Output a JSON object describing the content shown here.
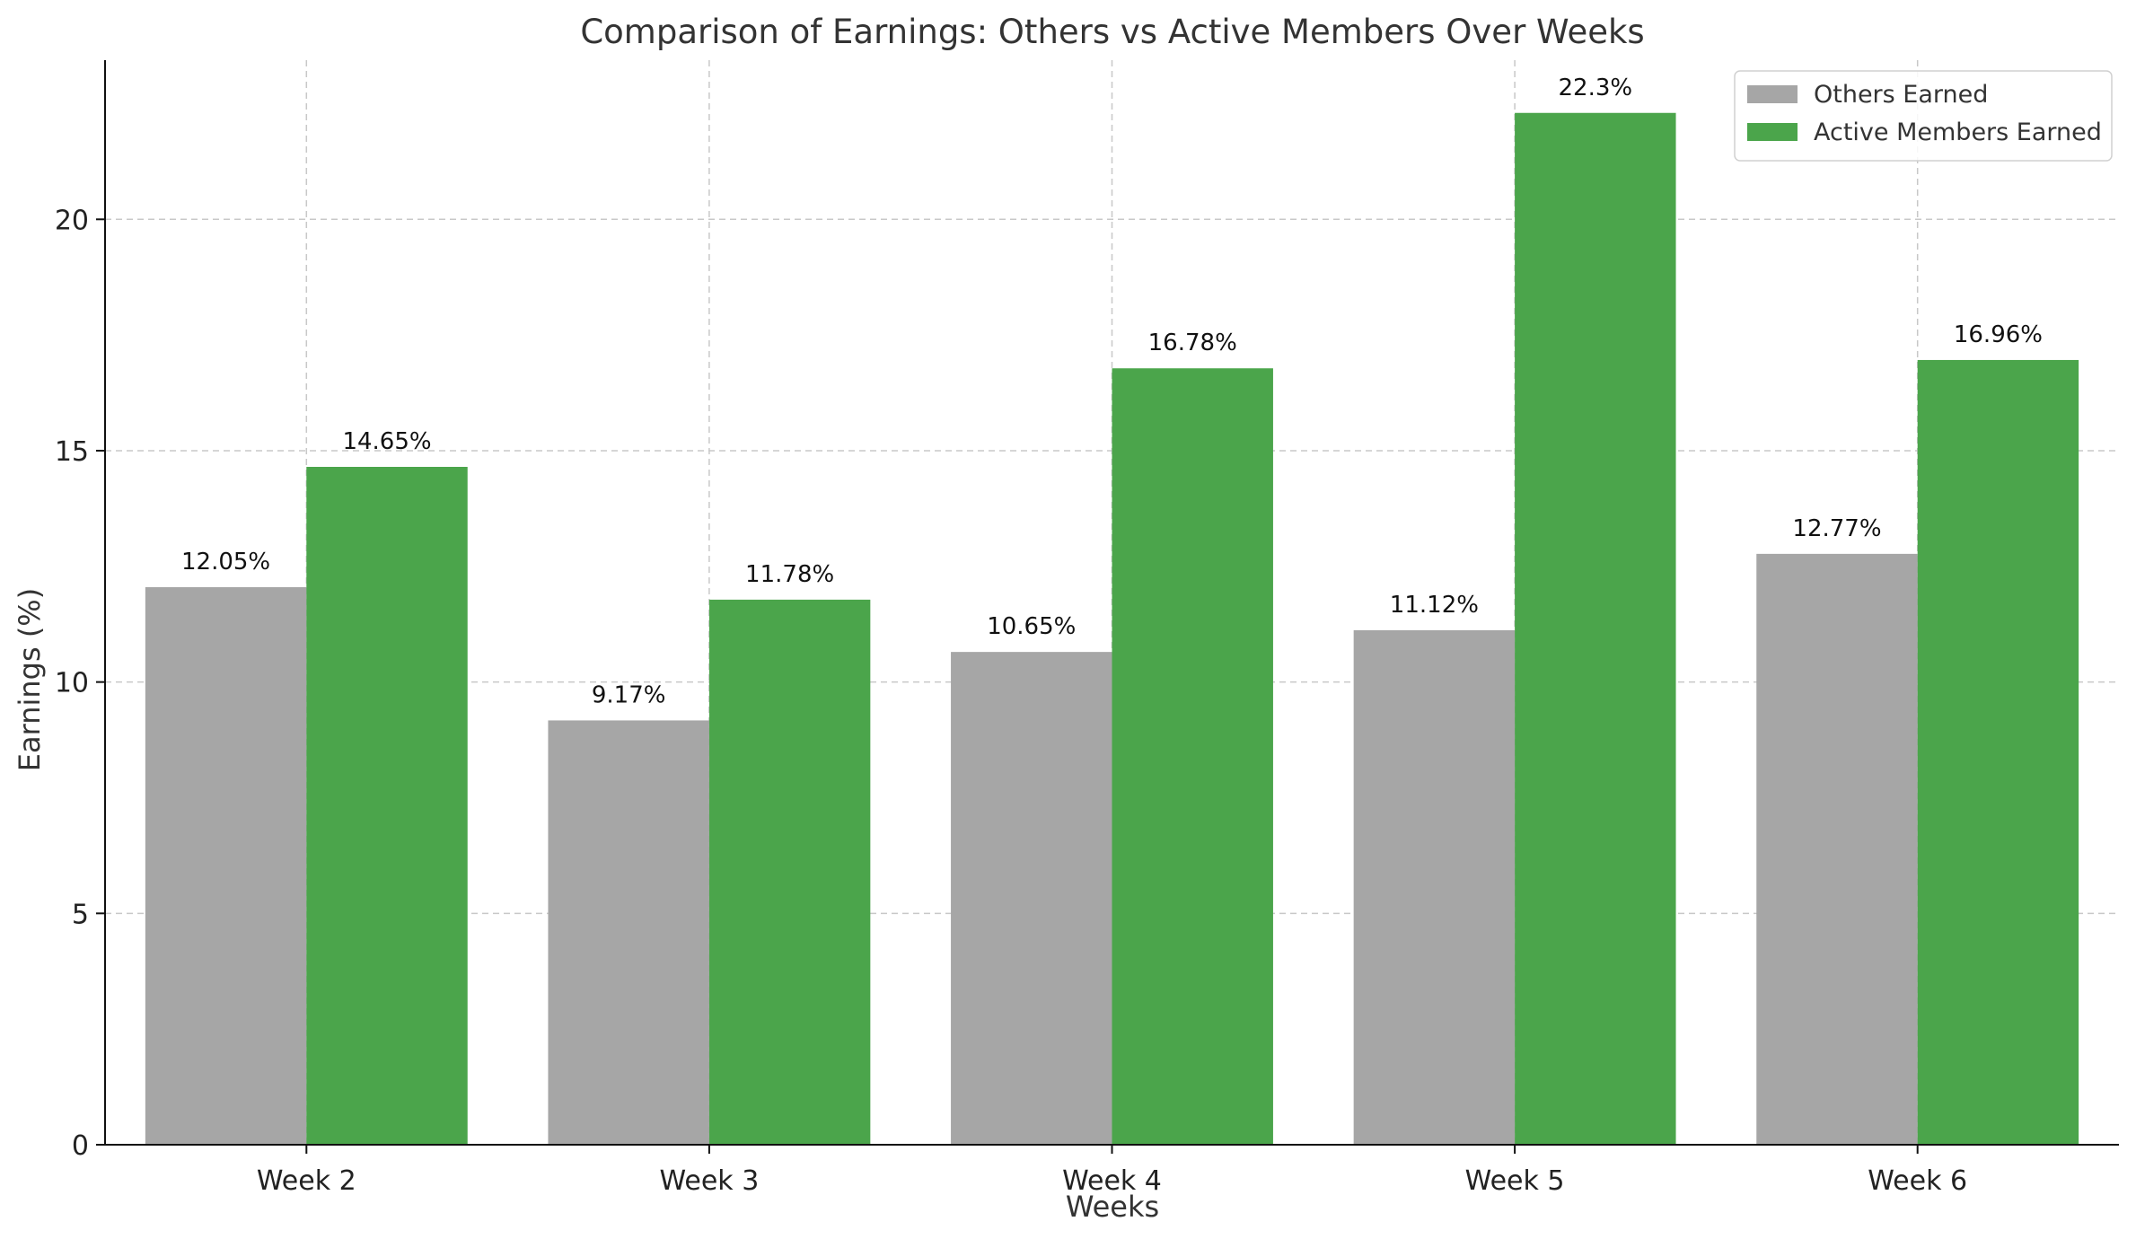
{
  "chart_data": {
    "type": "bar",
    "title": "Comparison of Earnings: Others vs Active Members Over Weeks",
    "xlabel": "Weeks",
    "ylabel": "Earnings (%)",
    "categories": [
      "Week 2",
      "Week 3",
      "Week 4",
      "Week 5",
      "Week 6"
    ],
    "series": [
      {
        "name": "Others Earned",
        "color": "#a6a6a6",
        "values": [
          12.05,
          9.17,
          10.65,
          11.12,
          12.77
        ],
        "labels": [
          "12.05%",
          "9.17%",
          "10.65%",
          "11.12%",
          "12.77%"
        ]
      },
      {
        "name": "Active Members Earned",
        "color": "#4ba54b",
        "values": [
          14.65,
          11.78,
          16.78,
          22.3,
          16.96
        ],
        "labels": [
          "14.65%",
          "11.78%",
          "16.78%",
          "22.3%",
          "16.96%"
        ]
      }
    ],
    "ylim": [
      0,
      23.44
    ],
    "yticks": [
      0,
      5,
      10,
      15,
      20
    ],
    "ytick_labels": [
      "0",
      "5",
      "10",
      "15",
      "20"
    ],
    "grid": true,
    "legend_position": "top-right"
  }
}
